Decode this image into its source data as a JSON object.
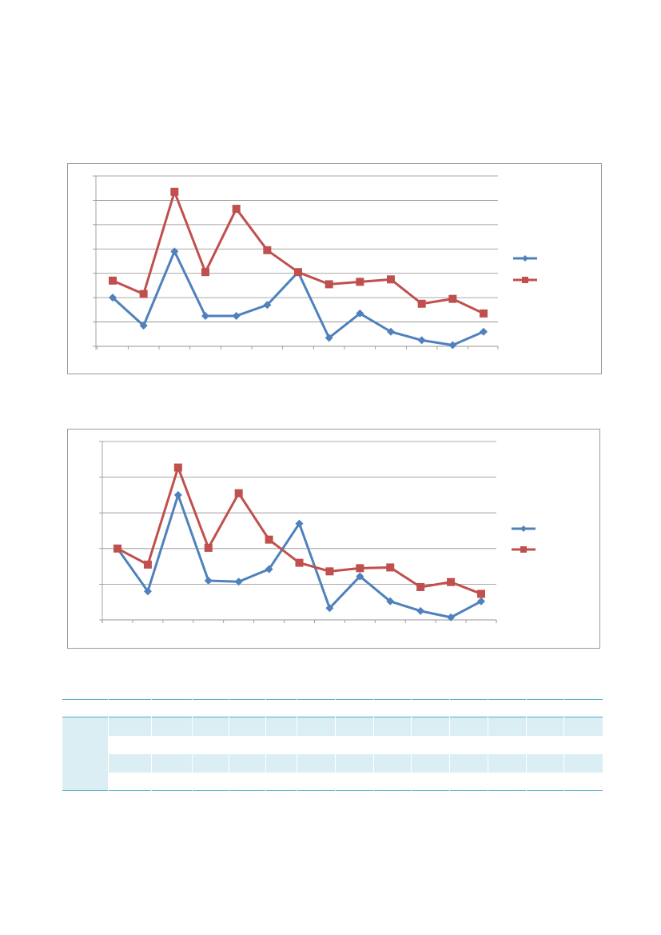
{
  "charts": [
    {
      "type": "line",
      "ylim": [
        0,
        7
      ],
      "grid": true,
      "legend_position": "right",
      "colors": [
        "#4f81bd",
        "#c0504d"
      ],
      "markers": [
        "diamond",
        "square"
      ],
      "series": [
        {
          "values": [
            2.0,
            0.85,
            3.9,
            1.25,
            1.25,
            1.7,
            3.05,
            0.35,
            1.35,
            0.6,
            0.25,
            0.05,
            0.6
          ]
        },
        {
          "values": [
            2.7,
            2.15,
            6.35,
            3.05,
            5.65,
            3.95,
            3.05,
            2.55,
            2.65,
            2.75,
            1.75,
            1.95,
            1.35
          ]
        }
      ]
    },
    {
      "type": "line",
      "ylim": [
        0,
        5
      ],
      "grid": true,
      "legend_position": "right",
      "colors": [
        "#4f81bd",
        "#c0504d"
      ],
      "markers": [
        "diamond",
        "square"
      ],
      "series": [
        {
          "values": [
            2.0,
            0.8,
            3.5,
            1.1,
            1.07,
            1.42,
            2.7,
            0.33,
            1.22,
            0.52,
            0.25,
            0.07,
            0.52
          ]
        },
        {
          "values": [
            2.0,
            1.55,
            4.27,
            2.02,
            3.55,
            2.25,
            1.6,
            1.36,
            1.45,
            1.47,
            0.92,
            1.06,
            0.73
          ]
        }
      ]
    }
  ],
  "table": {
    "header_color": "#4bacc6",
    "shade_color": "#dbeef4",
    "columns": 14,
    "rows": 4
  }
}
